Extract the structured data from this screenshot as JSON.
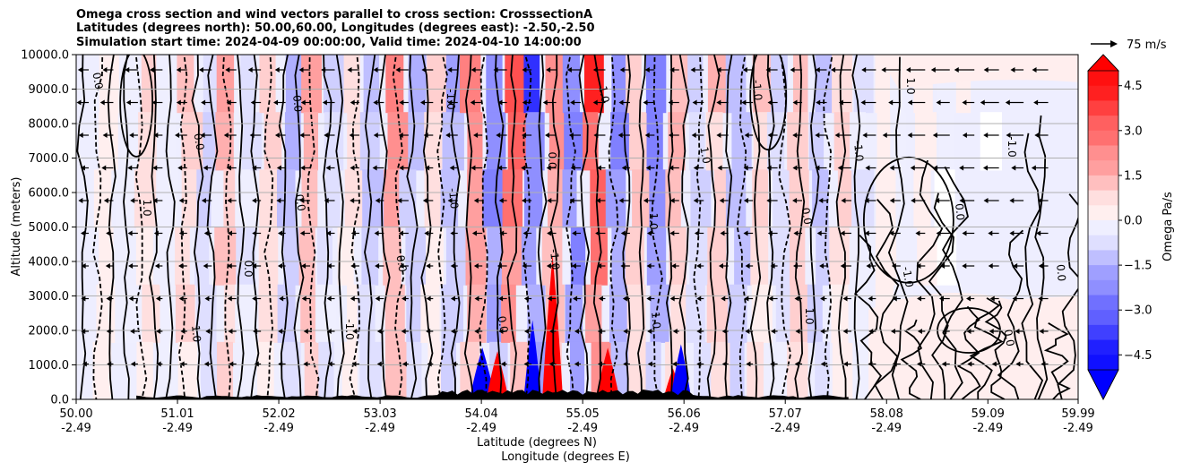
{
  "chart_data": {
    "type": "contour",
    "title_lines": [
      "Omega cross section and wind vectors parallel to cross section: CrosssectionA",
      "Latitudes (degrees north): 50.00,60.00, Longitudes (degrees east): -2.50,-2.50",
      "Simulation start time: 2024-04-09 00:00:00, Valid time: 2024-04-10 14:00:00"
    ],
    "xlabel_lines": [
      "Latitude (degrees N)",
      "Longitude (degrees E)"
    ],
    "ylabel": "Altitude (meters)",
    "x_ticks": [
      {
        "lat": "50.00",
        "lon": "-2.49"
      },
      {
        "lat": "51.01",
        "lon": "-2.49"
      },
      {
        "lat": "52.02",
        "lon": "-2.49"
      },
      {
        "lat": "53.03",
        "lon": "-2.49"
      },
      {
        "lat": "54.04",
        "lon": "-2.49"
      },
      {
        "lat": "55.05",
        "lon": "-2.49"
      },
      {
        "lat": "56.06",
        "lon": "-2.49"
      },
      {
        "lat": "57.07",
        "lon": "-2.49"
      },
      {
        "lat": "58.08",
        "lon": "-2.49"
      },
      {
        "lat": "59.09",
        "lon": "-2.49"
      },
      {
        "lat": "59.99",
        "lon": "-2.49"
      }
    ],
    "xlim": [
      50.0,
      59.99
    ],
    "y_ticks": [
      "0.0",
      "1000.0",
      "2000.0",
      "3000.0",
      "4000.0",
      "5000.0",
      "6000.0",
      "7000.0",
      "8000.0",
      "9000.0",
      "10000.0"
    ],
    "ylim": [
      0,
      10000
    ],
    "grid": "horizontal",
    "colorbar": {
      "label": "Omega Pa/s",
      "range": [
        -5.0,
        5.0
      ],
      "extend": "both",
      "tick_labels": [
        "4.5",
        "3.0",
        "1.5",
        "0.0",
        "−1.5",
        "−3.0",
        "−4.5"
      ],
      "tick_values": [
        4.5,
        3.0,
        1.5,
        0.0,
        -1.5,
        -3.0,
        -4.5
      ],
      "cmap": "bwr"
    },
    "quiver_key": {
      "label": "75 m/s",
      "value": 75
    },
    "contour_levels": [
      -1.0,
      0.0,
      1.0
    ],
    "contour_labels": [
      "0.0",
      "-1.0",
      "1.0",
      "0.0",
      "-1.0",
      "1.0",
      "0.0",
      "1.0",
      "-1.0",
      "0.0",
      "-1.0",
      "1.0",
      "0.0",
      "-1.0",
      "0.0",
      "1.0",
      "0.0",
      "-1.0",
      "1.0",
      "0.0",
      "-1.0",
      "0.0",
      "1.0",
      "0.0",
      "-1.0",
      "0.0",
      "1.0",
      "0.0"
    ],
    "strong_cells": [
      {
        "lat": 54.05,
        "alt_max": 1500,
        "sign": "neg"
      },
      {
        "lat": 54.2,
        "alt_max": 1400,
        "sign": "pos"
      },
      {
        "lat": 54.55,
        "alt_max": 2300,
        "sign": "neg"
      },
      {
        "lat": 54.75,
        "alt_max": 4200,
        "sign": "pos"
      },
      {
        "lat": 55.3,
        "alt_max": 1500,
        "sign": "pos"
      },
      {
        "lat": 55.95,
        "alt_max": 900,
        "sign": "pos"
      },
      {
        "lat": 56.03,
        "alt_max": 1600,
        "sign": "neg"
      }
    ],
    "band_pattern": [
      0,
      0.3,
      -0.3,
      0.8,
      -0.5,
      1.2,
      -1.0,
      1.6,
      -0.6,
      0.9,
      -1.4,
      1.8,
      -0.9,
      0.6,
      -1.6,
      2.2,
      -1.3,
      0.8,
      -2.0,
      2.6,
      -2.8,
      3.2,
      -3.5,
      2.0,
      -3.0,
      3.6,
      -2.4,
      1.4,
      -2.6,
      1.6,
      -1.0,
      1.2,
      -1.6,
      1.0,
      -0.8,
      1.4,
      -1.2,
      0.9,
      -0.6,
      0.4,
      -0.3,
      0.2,
      -0.2,
      0.15,
      -0.15,
      0.1,
      -0.1,
      0.1,
      0
    ]
  }
}
